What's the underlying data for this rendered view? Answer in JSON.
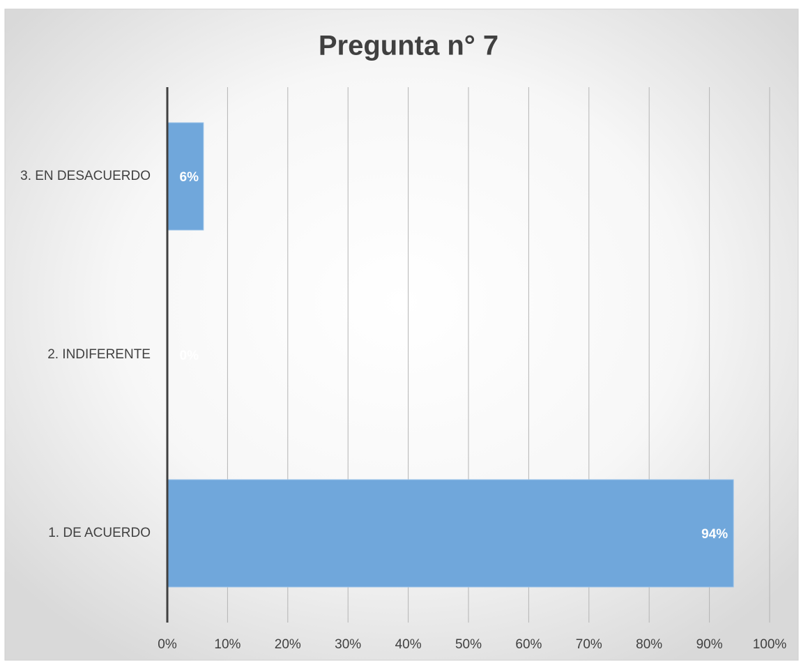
{
  "chart_data": {
    "type": "bar",
    "orientation": "horizontal",
    "title": "Pregunta n° 7",
    "categories": [
      "1. DE ACUERDO",
      "2. INDIFERENTE",
      "3. EN DESACUERDO"
    ],
    "values": [
      94,
      0,
      6
    ],
    "value_labels": [
      "94%",
      "0%",
      "6%"
    ],
    "color": "#70a7db",
    "xlim": [
      0,
      100
    ],
    "xticks": [
      {
        "value": 0,
        "label": "0%"
      },
      {
        "value": 10,
        "label": "10%"
      },
      {
        "value": 20,
        "label": "20%"
      },
      {
        "value": 30,
        "label": "30%"
      },
      {
        "value": 40,
        "label": "40%"
      },
      {
        "value": 50,
        "label": "50%"
      },
      {
        "value": 60,
        "label": "60%"
      },
      {
        "value": 70,
        "label": "70%"
      },
      {
        "value": 80,
        "label": "80%"
      },
      {
        "value": 90,
        "label": "90%"
      },
      {
        "value": 100,
        "label": "100%"
      }
    ],
    "grid": true
  }
}
